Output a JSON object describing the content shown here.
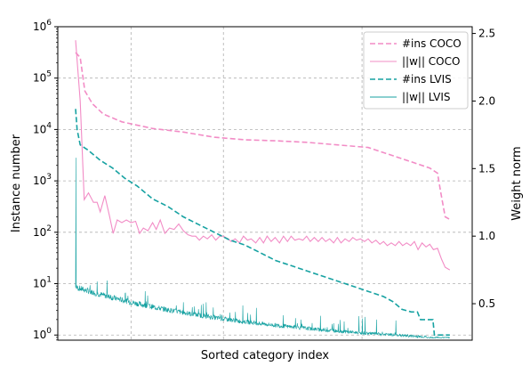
{
  "chart_data": {
    "type": "line",
    "xlabel": "Sorted category index",
    "ylabel_left": "Instance number",
    "ylabel_right": "Weight norm",
    "left_axis": {
      "scale": "log",
      "ylim_exp": [
        -0.1,
        6.0
      ],
      "ticks": [
        {
          "exp": 0,
          "base": "10",
          "sup": "0"
        },
        {
          "exp": 1,
          "base": "10",
          "sup": "1"
        },
        {
          "exp": 2,
          "base": "10",
          "sup": "2"
        },
        {
          "exp": 3,
          "base": "10",
          "sup": "3"
        },
        {
          "exp": 4,
          "base": "10",
          "sup": "4"
        },
        {
          "exp": 5,
          "base": "10",
          "sup": "5"
        },
        {
          "exp": 6,
          "base": "10",
          "sup": "6"
        }
      ]
    },
    "right_axis": {
      "scale": "linear",
      "ylim": [
        0.23,
        2.55
      ],
      "ticks": [
        "0.5",
        "1.0",
        "1.5",
        "2.0",
        "2.5"
      ],
      "tick_values": [
        0.5,
        1.0,
        1.5,
        2.0,
        2.5
      ]
    },
    "x_range": [
      0,
      1230
    ],
    "x_gridlines": [
      180,
      480,
      930
    ],
    "grid": true,
    "legend_position": "top-right",
    "series": [
      {
        "name": "#ins COCO",
        "axis": "left",
        "style": "dashed",
        "color": "#f28cc6",
        "points": [
          [
            0,
            5.5
          ],
          [
            15,
            5.4
          ],
          [
            30,
            4.75
          ],
          [
            55,
            4.5
          ],
          [
            90,
            4.3
          ],
          [
            150,
            4.15
          ],
          [
            250,
            4.02
          ],
          [
            350,
            3.95
          ],
          [
            450,
            3.85
          ],
          [
            550,
            3.8
          ],
          [
            650,
            3.78
          ],
          [
            750,
            3.75
          ],
          [
            850,
            3.7
          ],
          [
            950,
            3.65
          ],
          [
            1000,
            3.55
          ],
          [
            1050,
            3.45
          ],
          [
            1100,
            3.35
          ],
          [
            1150,
            3.25
          ],
          [
            1175,
            3.15
          ],
          [
            1185,
            2.8
          ],
          [
            1200,
            2.3
          ],
          [
            1215,
            2.25
          ]
        ]
      },
      {
        "name": "||w|| COCO",
        "axis": "right",
        "style": "solid",
        "color": "#f28cc6",
        "points": [
          [
            0,
            2.45
          ],
          [
            15,
            2.0
          ],
          [
            28,
            1.27
          ],
          [
            42,
            1.32
          ],
          [
            58,
            1.25
          ],
          [
            70,
            1.25
          ],
          [
            80,
            1.18
          ],
          [
            95,
            1.3
          ],
          [
            110,
            1.15
          ],
          [
            122,
            1.02
          ],
          [
            135,
            1.12
          ],
          [
            150,
            1.1
          ],
          [
            165,
            1.12
          ],
          [
            180,
            1.1
          ],
          [
            195,
            1.11
          ],
          [
            208,
            1.02
          ],
          [
            220,
            1.06
          ],
          [
            235,
            1.04
          ],
          [
            250,
            1.1
          ],
          [
            262,
            1.05
          ],
          [
            275,
            1.12
          ],
          [
            290,
            1.02
          ],
          [
            305,
            1.06
          ],
          [
            320,
            1.05
          ],
          [
            335,
            1.09
          ],
          [
            350,
            1.04
          ],
          [
            365,
            1.01
          ],
          [
            378,
            1.0
          ],
          [
            390,
            1.0
          ],
          [
            402,
            0.97
          ],
          [
            415,
            1.0
          ],
          [
            428,
            0.98
          ],
          [
            442,
            1.01
          ],
          [
            455,
            0.97
          ],
          [
            468,
            1.0
          ],
          [
            480,
            1.0
          ],
          [
            495,
            0.98
          ],
          [
            505,
            0.96
          ],
          [
            518,
            0.98
          ],
          [
            532,
            0.95
          ],
          [
            545,
            1.0
          ],
          [
            558,
            0.97
          ],
          [
            570,
            0.98
          ],
          [
            585,
            0.95
          ],
          [
            598,
            0.99
          ],
          [
            610,
            0.95
          ],
          [
            622,
            1.0
          ],
          [
            635,
            0.96
          ],
          [
            648,
            0.99
          ],
          [
            662,
            0.95
          ],
          [
            675,
            1.0
          ],
          [
            688,
            0.96
          ],
          [
            700,
            1.0
          ],
          [
            712,
            0.97
          ],
          [
            725,
            0.98
          ],
          [
            738,
            0.97
          ],
          [
            750,
            1.0
          ],
          [
            762,
            0.96
          ],
          [
            775,
            0.99
          ],
          [
            788,
            0.96
          ],
          [
            800,
            0.99
          ],
          [
            812,
            0.96
          ],
          [
            825,
            0.98
          ],
          [
            838,
            0.95
          ],
          [
            850,
            0.99
          ],
          [
            862,
            0.95
          ],
          [
            875,
            0.98
          ],
          [
            888,
            0.96
          ],
          [
            900,
            0.99
          ],
          [
            912,
            0.97
          ],
          [
            925,
            0.98
          ],
          [
            938,
            0.96
          ],
          [
            950,
            0.98
          ],
          [
            962,
            0.95
          ],
          [
            975,
            0.97
          ],
          [
            988,
            0.94
          ],
          [
            1000,
            0.96
          ],
          [
            1012,
            0.93
          ],
          [
            1025,
            0.95
          ],
          [
            1038,
            0.93
          ],
          [
            1050,
            0.96
          ],
          [
            1062,
            0.93
          ],
          [
            1075,
            0.95
          ],
          [
            1088,
            0.93
          ],
          [
            1100,
            0.96
          ],
          [
            1112,
            0.9
          ],
          [
            1125,
            0.95
          ],
          [
            1138,
            0.92
          ],
          [
            1150,
            0.94
          ],
          [
            1162,
            0.9
          ],
          [
            1175,
            0.91
          ],
          [
            1188,
            0.83
          ],
          [
            1200,
            0.77
          ],
          [
            1215,
            0.75
          ]
        ]
      },
      {
        "name": "#ins LVIS",
        "axis": "left",
        "style": "dashed",
        "color": "#17a2a2",
        "points": [
          [
            0,
            4.4
          ],
          [
            5,
            4.0
          ],
          [
            15,
            3.7
          ],
          [
            40,
            3.6
          ],
          [
            80,
            3.4
          ],
          [
            120,
            3.25
          ],
          [
            160,
            3.05
          ],
          [
            200,
            2.9
          ],
          [
            250,
            2.65
          ],
          [
            300,
            2.5
          ],
          [
            350,
            2.3
          ],
          [
            400,
            2.15
          ],
          [
            450,
            2.0
          ],
          [
            500,
            1.85
          ],
          [
            550,
            1.75
          ],
          [
            600,
            1.6
          ],
          [
            650,
            1.45
          ],
          [
            700,
            1.35
          ],
          [
            750,
            1.25
          ],
          [
            800,
            1.15
          ],
          [
            850,
            1.05
          ],
          [
            900,
            0.95
          ],
          [
            950,
            0.85
          ],
          [
            1000,
            0.75
          ],
          [
            1030,
            0.65
          ],
          [
            1060,
            0.5
          ],
          [
            1090,
            0.45
          ],
          [
            1110,
            0.45
          ],
          [
            1120,
            0.3
          ],
          [
            1160,
            0.3
          ],
          [
            1165,
            0.0
          ],
          [
            1215,
            0.0
          ]
        ]
      }
    ],
    "noisy_series": {
      "name": "||w|| LVIS",
      "axis": "right",
      "style": "solid",
      "color": "#17a2a2",
      "n": 1215,
      "spike": {
        "index": 1,
        "value": 1.58
      },
      "start": 0.62,
      "end": 0.245,
      "decay": 2.2,
      "noise": 0.045,
      "floor": 0.245,
      "floor_from": 1140
    },
    "legend": [
      {
        "label": "#ins COCO",
        "style": "dashed",
        "color": "#f28cc6"
      },
      {
        "label": "||w|| COCO",
        "style": "solid",
        "color": "#f28cc6"
      },
      {
        "label": "#ins LVIS",
        "style": "dashed",
        "color": "#17a2a2"
      },
      {
        "label": "||w|| LVIS",
        "style": "solid",
        "color": "#17a2a2"
      }
    ]
  }
}
